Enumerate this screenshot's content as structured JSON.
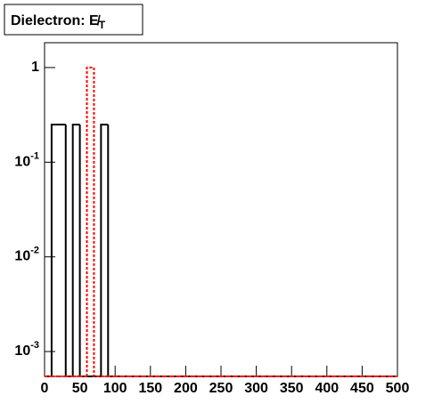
{
  "chart_data": {
    "type": "histogram",
    "title": "Dielectron: E̸T",
    "bins": [
      0,
      10,
      20,
      30,
      40,
      50,
      60,
      70,
      80,
      90,
      100,
      110,
      120,
      130,
      140,
      150,
      160,
      170,
      180,
      190,
      200,
      210,
      220,
      230,
      240,
      250,
      260,
      270,
      280,
      290,
      300,
      310,
      320,
      330,
      340,
      350,
      360,
      370,
      380,
      390,
      400,
      410,
      420,
      430,
      440,
      450,
      460,
      470,
      480,
      490,
      500
    ],
    "series": [
      {
        "color": "#000000",
        "values": [
          0,
          0.25,
          0.25,
          0,
          0.25,
          0,
          0,
          0,
          0.25,
          0,
          0,
          0,
          0,
          0,
          0,
          0,
          0,
          0,
          0,
          0,
          0,
          0,
          0,
          0,
          0,
          0,
          0,
          0,
          0,
          0,
          0,
          0,
          0,
          0,
          0,
          0,
          0,
          0,
          0,
          0,
          0,
          0,
          0,
          0,
          0,
          0,
          0,
          0,
          0,
          0
        ]
      },
      {
        "color": "#ff0000",
        "dashed": true,
        "values": [
          0,
          0,
          0,
          0,
          0,
          0,
          1,
          0,
          0,
          0,
          0,
          0,
          0,
          0,
          0,
          0,
          0,
          0,
          0,
          0,
          0,
          0,
          0,
          0,
          0,
          0,
          0,
          0,
          0,
          0,
          0,
          0,
          0,
          0,
          0,
          0,
          0,
          0,
          0,
          0,
          0,
          0,
          0,
          0,
          0,
          0,
          0,
          0,
          0,
          0
        ]
      }
    ],
    "xlim": [
      0,
      500
    ],
    "xticks": [
      0,
      50,
      100,
      150,
      200,
      250,
      300,
      350,
      400,
      450,
      500
    ],
    "ylim": [
      0.000546,
      1.83
    ],
    "log_y": true,
    "yticks": [
      {
        "value": 0.001,
        "label": "10-3"
      },
      {
        "value": 0.01,
        "label": "10-2"
      },
      {
        "value": 0.1,
        "label": "10-1"
      },
      1
    ]
  }
}
